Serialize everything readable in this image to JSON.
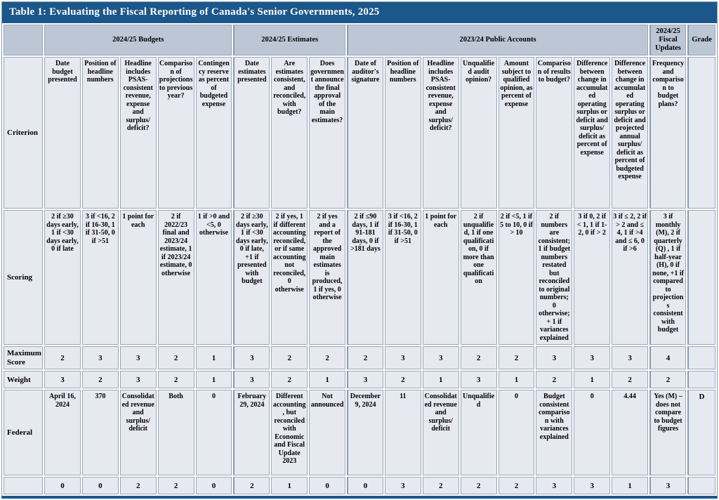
{
  "title": "Table 1: Evaluating the Fiscal Reporting of Canada's Senior Governments, 2025",
  "colors": {
    "title_bar": "#1b578a",
    "group_header_bg": "#bcc6d5",
    "cell_bg": "#e7e9f1",
    "grid_line": "#9aa6b8"
  },
  "row_labels": {
    "criterion": "Criterion",
    "scoring": "Scoring",
    "max_score": "Maximum Score",
    "weight": "Weight"
  },
  "groups": [
    {
      "label": "2024/25 Budgets",
      "span": 5
    },
    {
      "label": "2024/25 Estimates",
      "span": 3
    },
    {
      "label": "2023/24 Public Accounts",
      "span": 8
    },
    {
      "label": "2024/25 Fiscal Updates",
      "span": 1
    },
    {
      "label": "Grade",
      "span": 1
    }
  ],
  "criteria": [
    "Date budget presented",
    "Position of headline numbers",
    "Headline includes PSAS-consistent revenue, expense and surplus/ deficit?",
    "Comparison of projections to previous year?",
    "Contingency reserve as percent of budgeted expense",
    "Date estimates presented",
    "Are estimates consistent, and reconciled, with budget?",
    "Does government announce the final approval of the main estimates?",
    "Date of auditor's signature",
    "Position of headline numbers",
    "Headline includes PSAS-consistent revenue, expense and surplus/ deficit?",
    "Unqualified audit opinion?",
    "Amount subject to qualified opinion, as percent of expense",
    "Comparison of results to budget?",
    "Difference between change in accumulated operating surplus or deficit and surplus/ deficit as percent of expense",
    "Difference between change in accumulated operating surplus or deficit and projected annual surplus/ deficit as percent of budgeted expense",
    "Frequency and comparison to budget plans?"
  ],
  "scoring": [
    "2 if ≥30 days early, 1 if <30 days early, 0 if late",
    "3 if <16, 2 if 16-30, 1 if 31-50, 0 if >51",
    "1 point for each",
    "2 if 2022/23 final and 2023/24 estimate, 1 if 2023/24 estimate, 0 otherwise",
    "1 if >0 and <5, 0 otherwise",
    "2 if ≥30 days early, 1 if <30 days early, 0 if late, +1 if presented with budget",
    "2 if yes, 1 if different accounting reconciled, or if same accounting not reconciled, 0 otherwise",
    "2 if yes and a report of the approved main estimates is produced, 1 if yes, 0 otherwise",
    "2 if ≤90 days, 1 if 91-181 days, 0 if >181 days",
    "3 if <16, 2 if 16-30, 1 if 31-50, 0 if >51",
    "1 point for each",
    "2 if unqualified, 1 if one qualification, 0 if more than one qualification",
    "2 if <5, 1 if 5 to 10, 0 if > 10",
    "2 if numbers are consistent; 1 if budget numbers restated but reconciled to original numbers; 0 otherwise; + 1 if variances explained",
    "3 if 0, 2 if < 1, 1 if 1-2, 0 if > 2",
    "3 if ≤ 2, 2 if > 2 and ≤ 4, 1 if >4 and ≤ 6, 0 if >6",
    "3 if monthly (M), 2 if quarterly (Q) , 1 if half-year (H), 0 if none, +1 if compared to projections consistent with budget"
  ],
  "max_score": [
    2,
    3,
    3,
    2,
    1,
    3,
    2,
    2,
    2,
    3,
    3,
    2,
    2,
    3,
    3,
    3,
    4
  ],
  "weight": [
    3,
    2,
    3,
    2,
    1,
    3,
    2,
    1,
    3,
    2,
    1,
    3,
    1,
    2,
    1,
    2,
    2
  ],
  "federal": {
    "label": "Federal",
    "values": [
      "April 16, 2024",
      "370",
      "Consolidated revenue and surplus/ deficit",
      "Both",
      "0",
      "February 29, 2024",
      "Different accounting, but reconciled with Economic and Fiscal Update 2023",
      "Not announced",
      "December 9, 2024",
      "11",
      "Consolidated revenue and surplus/ deficit",
      "Unqualified",
      "0",
      "Budget consistent comparison with variances explained",
      "0",
      "4.44",
      "Yes (M) – does not compare to budget figures"
    ],
    "grade": "D",
    "scores": [
      0,
      0,
      2,
      2,
      0,
      2,
      1,
      0,
      0,
      3,
      2,
      2,
      2,
      3,
      3,
      1,
      3
    ]
  }
}
